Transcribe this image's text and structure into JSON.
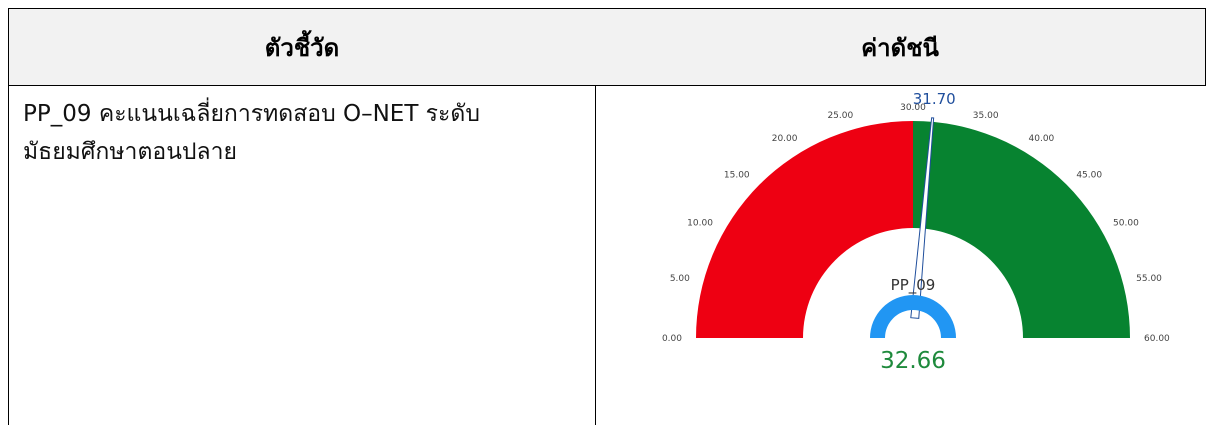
{
  "table": {
    "header": [
      "ตัวชี้วัด",
      "ค่าดัชนี"
    ],
    "rows": [
      [
        [
          "PP_09 คะแนนเฉลี่ยการทดสอบ O–NET ระดับ",
          "มัธยมศึกษาตอนปลาย"
        ]
      ]
    ]
  },
  "chart_data": {
    "type": "gauge",
    "title": "PP_09",
    "xlim": [
      0,
      60
    ],
    "xticks": [
      {
        "value": 0,
        "label": "0.00"
      },
      {
        "value": 5,
        "label": "5.00"
      },
      {
        "value": 10,
        "label": "10.00"
      },
      {
        "value": 15,
        "label": "15.00"
      },
      {
        "value": 20,
        "label": "20.00"
      },
      {
        "value": 25,
        "label": "25.00"
      },
      {
        "value": 30,
        "label": "30.00"
      },
      {
        "value": 35,
        "label": "35.00"
      },
      {
        "value": 40,
        "label": "40.00"
      },
      {
        "value": 45,
        "label": "45.00"
      },
      {
        "value": 50,
        "label": "50.00"
      },
      {
        "value": 55,
        "label": "55.00"
      },
      {
        "value": 60,
        "label": "60.00"
      }
    ],
    "bands": [
      {
        "from": 0,
        "to": 30,
        "color": "#ee0012"
      },
      {
        "from": 30,
        "to": 60,
        "color": "#078330"
      }
    ],
    "value": 31.7,
    "value_label": "31.70",
    "needle_color": "#1f4e9c",
    "inner": {
      "value": 32.66,
      "color": "#2196f3",
      "text_color": "#1e8a3c"
    }
  }
}
